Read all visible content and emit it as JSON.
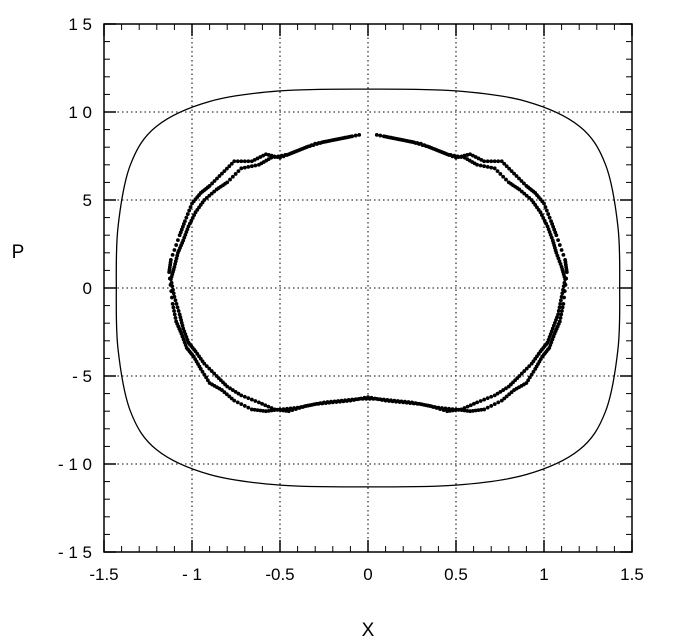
{
  "chart_data": {
    "type": "scatter",
    "title": "",
    "xlabel": "X",
    "ylabel": "P",
    "xlim": [
      -1.5,
      1.5
    ],
    "ylim": [
      -15,
      15
    ],
    "x_ticks": [
      -1.5,
      -1,
      -0.5,
      0,
      0.5,
      1,
      1.5
    ],
    "x_tick_labels": [
      "-1.5",
      "- 1",
      "-0.5",
      "0",
      "0.5",
      "1",
      "1.5"
    ],
    "y_ticks": [
      -15,
      -10,
      -5,
      0,
      5,
      10,
      15
    ],
    "y_tick_labels": [
      "- 1 5",
      "- 1 0",
      "- 5",
      "0",
      "5",
      "1 0",
      "1 5"
    ],
    "grid": true,
    "grid_style": "dotted",
    "series": [
      {
        "kind": "line",
        "color": "#000000",
        "x": [
          0,
          0.5,
          0.9,
          1.2,
          1.35,
          1.42,
          1.43,
          1.42,
          1.35,
          1.2,
          0.9,
          0.5,
          0,
          -0.5,
          -0.9,
          -1.2,
          -1.35,
          -1.42,
          -1.43,
          -1.42,
          -1.35,
          -1.2,
          -0.9,
          -0.5,
          0
        ],
        "y": [
          11.3,
          11.2,
          10.6,
          9.2,
          7.0,
          3.5,
          0,
          -3.5,
          -7.0,
          -9.2,
          -10.6,
          -11.2,
          -11.3,
          -11.2,
          -10.6,
          -9.2,
          -7.0,
          -3.5,
          0,
          3.5,
          7.0,
          9.2,
          10.6,
          11.2,
          11.3
        ]
      },
      {
        "kind": "dots",
        "color": "#000000",
        "x": [
          0.05,
          0.15,
          0.25,
          0.35,
          0.45,
          0.55,
          0.62,
          0.72,
          0.8,
          0.86,
          0.93,
          0.98,
          1.02,
          1.05,
          1.07,
          1.1,
          1.12,
          1.1,
          1.08,
          1.05,
          1.02,
          0.98,
          0.93,
          0.86,
          0.8,
          0.72,
          0.62,
          0.53,
          0.45,
          0.35,
          0.25,
          0.15,
          0.05,
          -0.05,
          -0.15,
          -0.25,
          -0.35,
          -0.45,
          -0.53,
          -0.62,
          -0.72,
          -0.8,
          -0.86,
          -0.93,
          -0.98,
          -1.02,
          -1.05,
          -1.07,
          -1.1,
          -1.12,
          -1.1,
          -1.08,
          -1.05,
          -1.02,
          -0.98,
          -0.93,
          -0.86,
          -0.8,
          -0.72,
          -0.62,
          -0.55,
          -0.45,
          -0.35,
          -0.25,
          -0.15,
          -0.05
        ],
        "y": [
          8.7,
          8.5,
          8.3,
          8.0,
          7.6,
          7.4,
          7.0,
          6.8,
          6.0,
          5.6,
          5.0,
          4.3,
          3.5,
          2.7,
          2.0,
          1.2,
          0.5,
          -0.5,
          -1.5,
          -2.3,
          -3.1,
          -3.6,
          -4.3,
          -5.0,
          -5.6,
          -6.1,
          -6.5,
          -6.9,
          -7.0,
          -6.7,
          -6.5,
          -6.4,
          -6.3,
          -6.3,
          -6.4,
          -6.5,
          -6.7,
          -7.0,
          -6.9,
          -6.5,
          -6.1,
          -5.6,
          -5.0,
          -4.3,
          -3.6,
          -3.1,
          -2.3,
          -1.5,
          -0.5,
          0.5,
          1.2,
          2.0,
          2.7,
          3.5,
          4.3,
          5.0,
          5.6,
          6.0,
          6.8,
          7.0,
          7.4,
          7.6,
          8.0,
          8.3,
          8.5,
          8.7
        ]
      },
      {
        "kind": "dots",
        "color": "#000000",
        "x": [
          0.1,
          0.2,
          0.3,
          0.4,
          0.5,
          0.58,
          0.66,
          0.76,
          0.83,
          0.9,
          0.95,
          1.0,
          1.04,
          1.07,
          1.12,
          1.13,
          1.11,
          1.09,
          1.06,
          1.03,
          0.99,
          0.95,
          0.9,
          0.83,
          0.76,
          0.66,
          0.58,
          0.5,
          0.4,
          0.3,
          0.2,
          0.1,
          0.0,
          -0.1,
          -0.2,
          -0.3,
          -0.4,
          -0.5,
          -0.58,
          -0.66,
          -0.76,
          -0.83,
          -0.9,
          -0.95,
          -0.99,
          -1.03,
          -1.06,
          -1.09,
          -1.11,
          -1.13,
          -1.12,
          -1.07,
          -1.04,
          -1.0,
          -0.95,
          -0.9,
          -0.83,
          -0.76,
          -0.66,
          -0.58,
          -0.5,
          -0.4,
          -0.3,
          -0.2,
          -0.1
        ],
        "y": [
          8.6,
          8.4,
          8.2,
          7.8,
          7.4,
          7.6,
          7.2,
          7.2,
          6.5,
          5.8,
          5.4,
          4.8,
          3.8,
          3.0,
          1.6,
          0.9,
          -0.9,
          -1.9,
          -2.6,
          -3.4,
          -3.9,
          -4.6,
          -5.4,
          -5.8,
          -6.4,
          -6.9,
          -7.0,
          -6.9,
          -6.8,
          -6.6,
          -6.5,
          -6.4,
          -6.2,
          -6.4,
          -6.5,
          -6.6,
          -6.8,
          -6.9,
          -7.0,
          -6.9,
          -6.4,
          -5.8,
          -5.4,
          -4.6,
          -3.9,
          -3.4,
          -2.6,
          -1.9,
          -0.9,
          0.9,
          1.6,
          3.0,
          3.8,
          4.8,
          5.4,
          5.8,
          6.5,
          7.2,
          7.2,
          7.6,
          7.4,
          7.8,
          8.2,
          8.4,
          8.6
        ]
      }
    ]
  }
}
